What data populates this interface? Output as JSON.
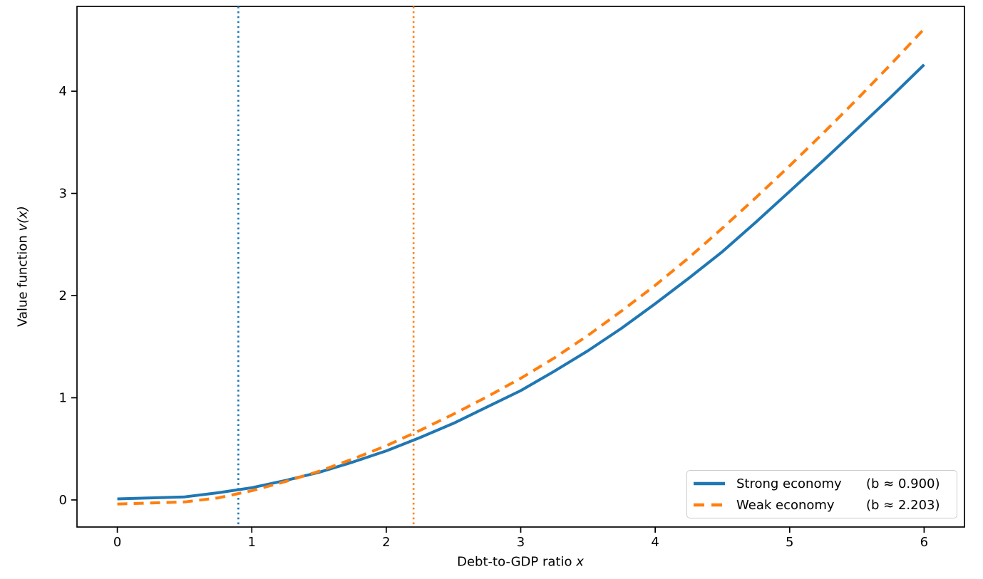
{
  "chart_data": {
    "type": "line",
    "title": "",
    "xlabel": {
      "text": "Debt-to-GDP ratio",
      "var": "x"
    },
    "ylabel": {
      "text": "Value function",
      "var": "v(x)"
    },
    "xlim": [
      -0.3,
      6.3
    ],
    "ylim": [
      -0.265,
      4.83
    ],
    "xticks": [
      0,
      1,
      2,
      3,
      4,
      5,
      6
    ],
    "yticks": [
      0,
      1,
      2,
      3,
      4
    ],
    "grid": false,
    "legend_position": "lower right",
    "x": [
      0,
      0.25,
      0.5,
      0.75,
      1,
      1.25,
      1.5,
      1.75,
      2,
      2.25,
      2.5,
      2.75,
      3,
      3.25,
      3.5,
      3.75,
      4,
      4.25,
      4.5,
      4.75,
      5,
      5.25,
      5.5,
      5.75,
      6
    ],
    "series": [
      {
        "name": "Strong economy",
        "legend_detail": "(b ≈ 0.900)",
        "color": "#1f77b4",
        "style": "solid",
        "values": [
          0.01,
          0.02,
          0.03,
          0.07,
          0.12,
          0.19,
          0.27,
          0.37,
          0.48,
          0.61,
          0.75,
          0.91,
          1.07,
          1.26,
          1.46,
          1.68,
          1.92,
          2.17,
          2.43,
          2.72,
          3.02,
          3.32,
          3.63,
          3.94,
          4.26
        ]
      },
      {
        "name": "Weak economy",
        "legend_detail": "(b ≈ 2.203)",
        "color": "#ff7f0e",
        "style": "dashed",
        "values": [
          -0.04,
          -0.03,
          -0.02,
          0.02,
          0.09,
          0.18,
          0.28,
          0.4,
          0.53,
          0.68,
          0.84,
          1.01,
          1.19,
          1.39,
          1.61,
          1.85,
          2.1,
          2.37,
          2.66,
          2.96,
          3.27,
          3.59,
          3.92,
          4.26,
          4.61
        ]
      }
    ],
    "vlines": [
      {
        "x": 0.9,
        "color": "#1f77b4",
        "style": "dotted",
        "label": "strong-boundary"
      },
      {
        "x": 2.203,
        "color": "#ff7f0e",
        "style": "dotted",
        "label": "weak-boundary"
      }
    ],
    "colors": {
      "background": "#ffffff",
      "spine": "#000000",
      "text": "#000000",
      "legend_border": "#cccccc"
    }
  }
}
